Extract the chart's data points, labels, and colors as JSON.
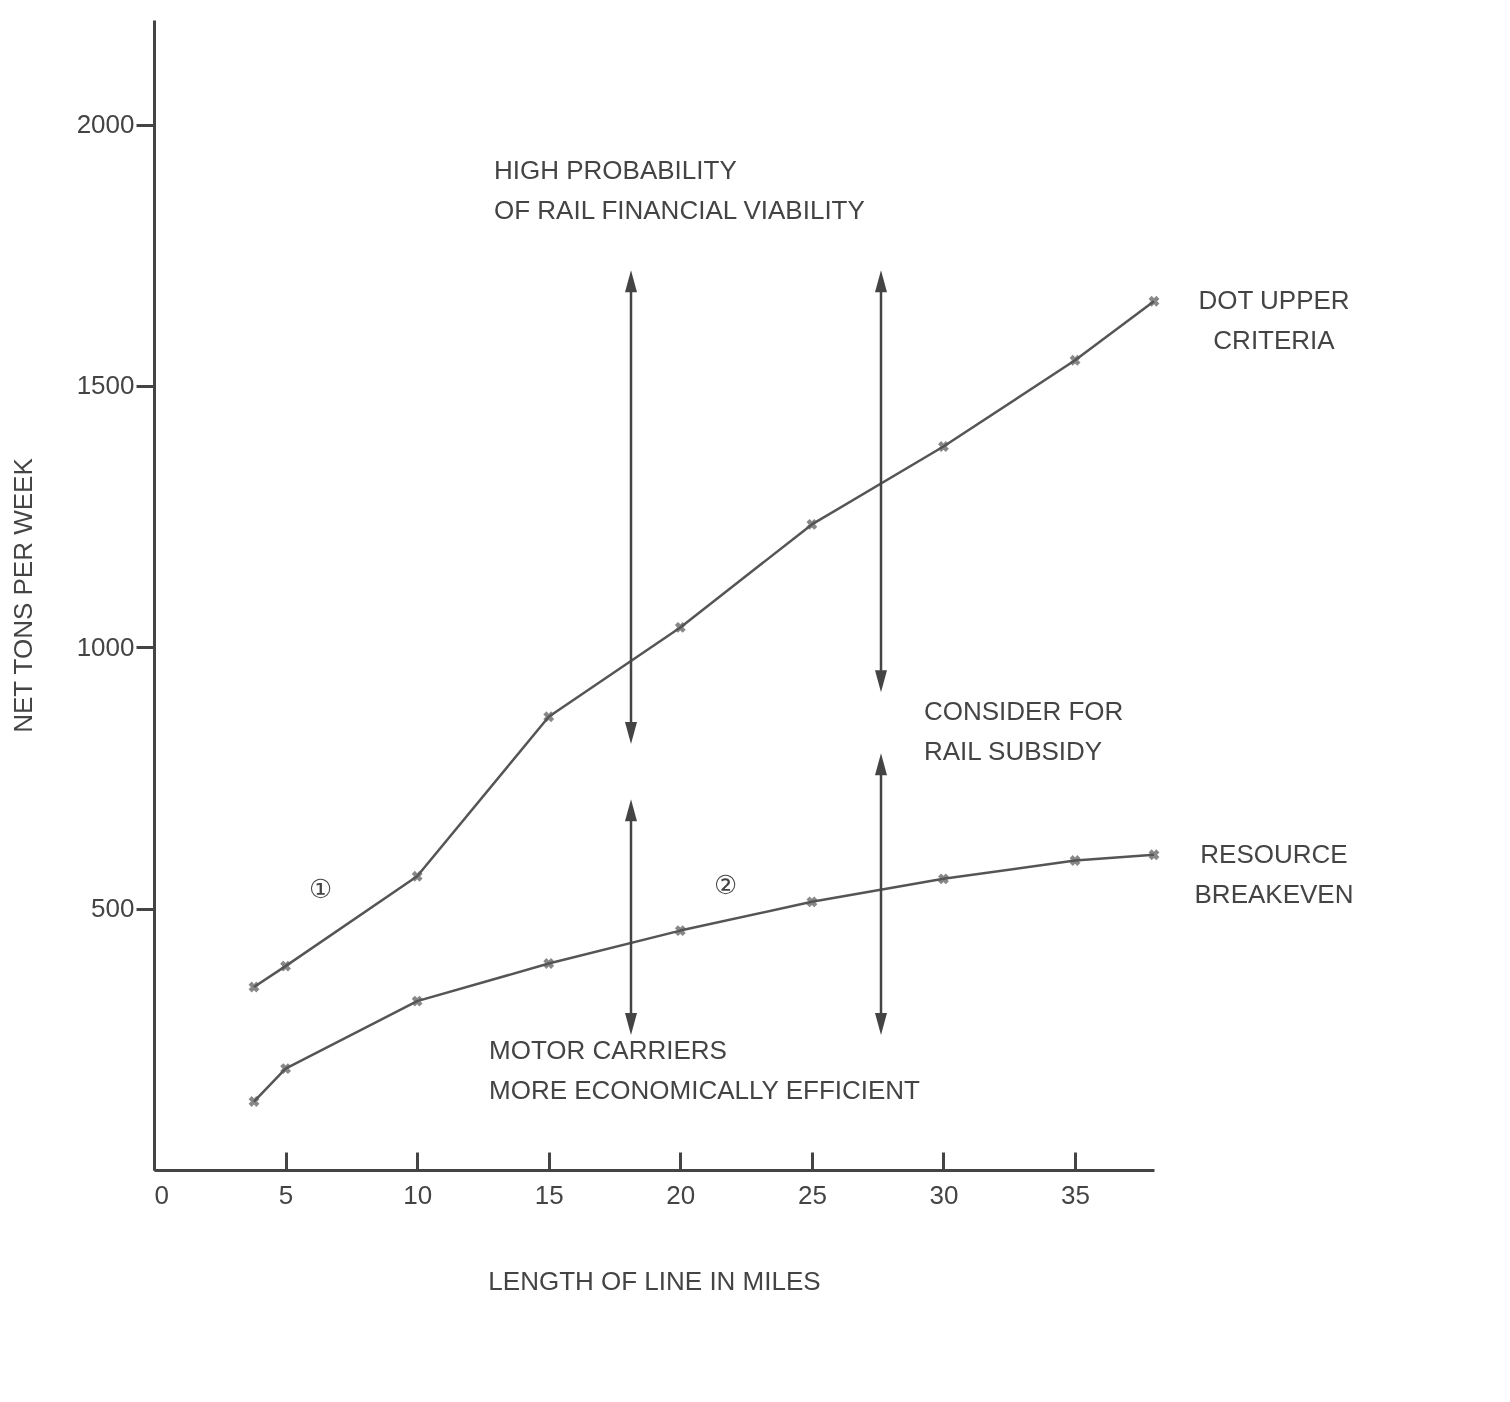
{
  "chart_data": {
    "type": "line",
    "xlabel": "LENGTH OF LINE IN MILES",
    "ylabel": "NET TONS PER WEEK",
    "xlim": [
      0,
      38
    ],
    "xticks": [
      0,
      5,
      10,
      15,
      20,
      25,
      30,
      35
    ],
    "ylim": [
      0,
      2200
    ],
    "yticks": [
      500,
      1000,
      1500,
      2000
    ],
    "grid": false,
    "legend": false,
    "marker": "cross",
    "line_style": "solid",
    "series": [
      {
        "name": "DOT UPPER CRITERIA",
        "color": "#555555",
        "x": [
          3.8,
          5,
          10,
          15,
          20,
          25,
          30,
          35,
          38
        ],
        "values": [
          350,
          390,
          562,
          867,
          1038,
          1235,
          1384,
          1549,
          1662
        ]
      },
      {
        "name": "RESOURCE BREAKEVEN",
        "color": "#555555",
        "x": [
          3.8,
          5,
          10,
          15,
          20,
          25,
          30,
          35,
          38
        ],
        "values": [
          131,
          194,
          323,
          395,
          458,
          513,
          557,
          592,
          603
        ]
      }
    ],
    "annotations": [
      "HIGH PROBABILITY\nOF RAIL FINANCIAL VIABILITY",
      "CONSIDER FOR\nRAIL SUBSIDY",
      "MOTOR CARRIERS\nMORE ECONOMICALLY EFFICIENT",
      "①",
      "②"
    ]
  }
}
